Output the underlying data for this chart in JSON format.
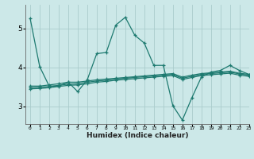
{
  "background_color": "#cce8e8",
  "grid_color": "#aacccc",
  "line_color": "#1e7a70",
  "xlabel": "Humidex (Indice chaleur)",
  "xlim": [
    -0.5,
    23
  ],
  "ylim": [
    2.55,
    5.6
  ],
  "yticks": [
    3,
    4,
    5
  ],
  "xticks": [
    0,
    1,
    2,
    3,
    4,
    5,
    6,
    7,
    8,
    9,
    10,
    11,
    12,
    13,
    14,
    15,
    16,
    17,
    18,
    19,
    20,
    21,
    22,
    23
  ],
  "line1_x": [
    0,
    1,
    2,
    3,
    4,
    5,
    6,
    7,
    8,
    9,
    10,
    11,
    12,
    13,
    14,
    15,
    16,
    17,
    18,
    19,
    20,
    21,
    22,
    23
  ],
  "line1_y": [
    5.25,
    4.02,
    3.52,
    3.52,
    3.62,
    3.38,
    3.68,
    4.35,
    4.38,
    5.08,
    5.28,
    4.82,
    4.62,
    4.05,
    4.05,
    3.02,
    2.65,
    3.22,
    3.75,
    3.88,
    3.92,
    4.05,
    3.92,
    3.82
  ],
  "line2_x": [
    0,
    1,
    2,
    3,
    4,
    5,
    6,
    7,
    8,
    9,
    10,
    11,
    12,
    13,
    14,
    15,
    16,
    17,
    18,
    19,
    20,
    21,
    22,
    23
  ],
  "line2_y": [
    3.52,
    3.52,
    3.55,
    3.58,
    3.62,
    3.62,
    3.65,
    3.68,
    3.7,
    3.72,
    3.74,
    3.76,
    3.78,
    3.8,
    3.82,
    3.84,
    3.75,
    3.8,
    3.84,
    3.86,
    3.88,
    3.9,
    3.85,
    3.82
  ],
  "line3_x": [
    0,
    1,
    2,
    3,
    4,
    5,
    6,
    7,
    8,
    9,
    10,
    11,
    12,
    13,
    14,
    15,
    16,
    17,
    18,
    19,
    20,
    21,
    22,
    23
  ],
  "line3_y": [
    3.48,
    3.49,
    3.51,
    3.54,
    3.57,
    3.58,
    3.62,
    3.65,
    3.67,
    3.7,
    3.72,
    3.74,
    3.76,
    3.78,
    3.8,
    3.82,
    3.72,
    3.77,
    3.82,
    3.84,
    3.86,
    3.88,
    3.83,
    3.8
  ],
  "line4_x": [
    0,
    1,
    2,
    3,
    4,
    5,
    6,
    7,
    8,
    9,
    10,
    11,
    12,
    13,
    14,
    15,
    16,
    17,
    18,
    19,
    20,
    21,
    22,
    23
  ],
  "line4_y": [
    3.45,
    3.46,
    3.48,
    3.51,
    3.54,
    3.55,
    3.58,
    3.62,
    3.64,
    3.67,
    3.69,
    3.71,
    3.73,
    3.75,
    3.77,
    3.79,
    3.69,
    3.74,
    3.79,
    3.81,
    3.83,
    3.85,
    3.8,
    3.77
  ]
}
